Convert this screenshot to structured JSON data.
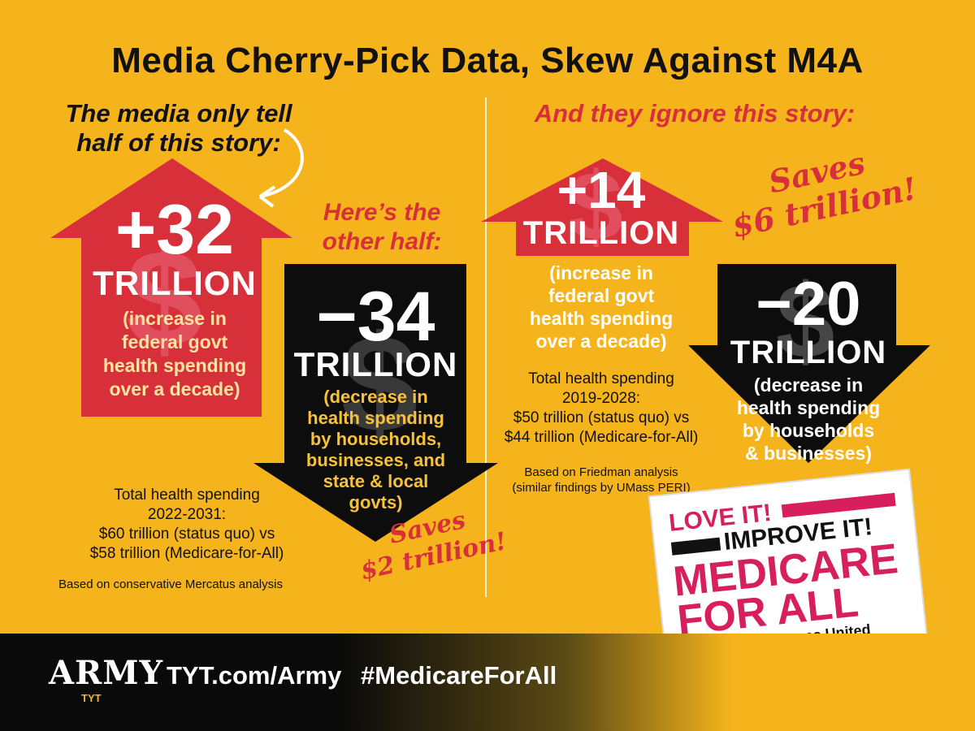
{
  "title": "Media Cherry-Pick Data, Skew Against M4A",
  "left": {
    "intro": [
      "The media only tell",
      "half of this story:"
    ],
    "up_amount": "+32",
    "up_unit": "TRILLION",
    "up_desc": [
      "(increase in",
      "federal govt",
      "health spending",
      "over a decade)"
    ],
    "other_half": [
      "Here’s the",
      "other half:"
    ],
    "down_amount": "−34",
    "down_unit": "TRILLION",
    "down_desc": [
      "(decrease in",
      "health spending",
      "by households,",
      "businesses, and",
      "state & local",
      "govts)"
    ],
    "saves": [
      "Saves",
      "$2 trillion!"
    ],
    "totals": [
      "Total health spending",
      "2022-2031:",
      "$60 trillion (status quo) vs",
      "$58 trillion (Medicare-for-All)"
    ],
    "source": "Based on conservative Mercatus analysis"
  },
  "right": {
    "intro": "And they ignore this story:",
    "up_amount": "+14",
    "up_unit": "TRILLION",
    "up_desc": [
      "(increase in",
      "federal govt",
      "health spending",
      "over a decade)"
    ],
    "saves": [
      "Saves",
      "$6 trillion!"
    ],
    "totals": [
      "Total health spending",
      "2019-2028:",
      "$50 trillion (status quo) vs",
      "$44 trillion (Medicare-for-All)"
    ],
    "source": [
      "Based on Friedman analysis",
      "(similar findings by UMass PERI)"
    ],
    "down_amount": "−20",
    "down_unit": "TRILLION",
    "down_desc": [
      "(decrease in",
      "health spending",
      "by households",
      "& businesses)"
    ]
  },
  "dollar_sign": "$",
  "sign": {
    "love": "LOVE IT!",
    "improve": "IMPROVE IT!",
    "medicare": "MEDICARE",
    "forall": "FOR ALL",
    "nnu": "National Nurses United"
  },
  "footer": {
    "army": "ARMY",
    "tyt": "TYT",
    "link": "TYT.com/Army",
    "hashtag": "#MedicareForAll"
  },
  "colors": {
    "background": "#f5b41b",
    "red": "#d8303a",
    "black": "#111111"
  }
}
